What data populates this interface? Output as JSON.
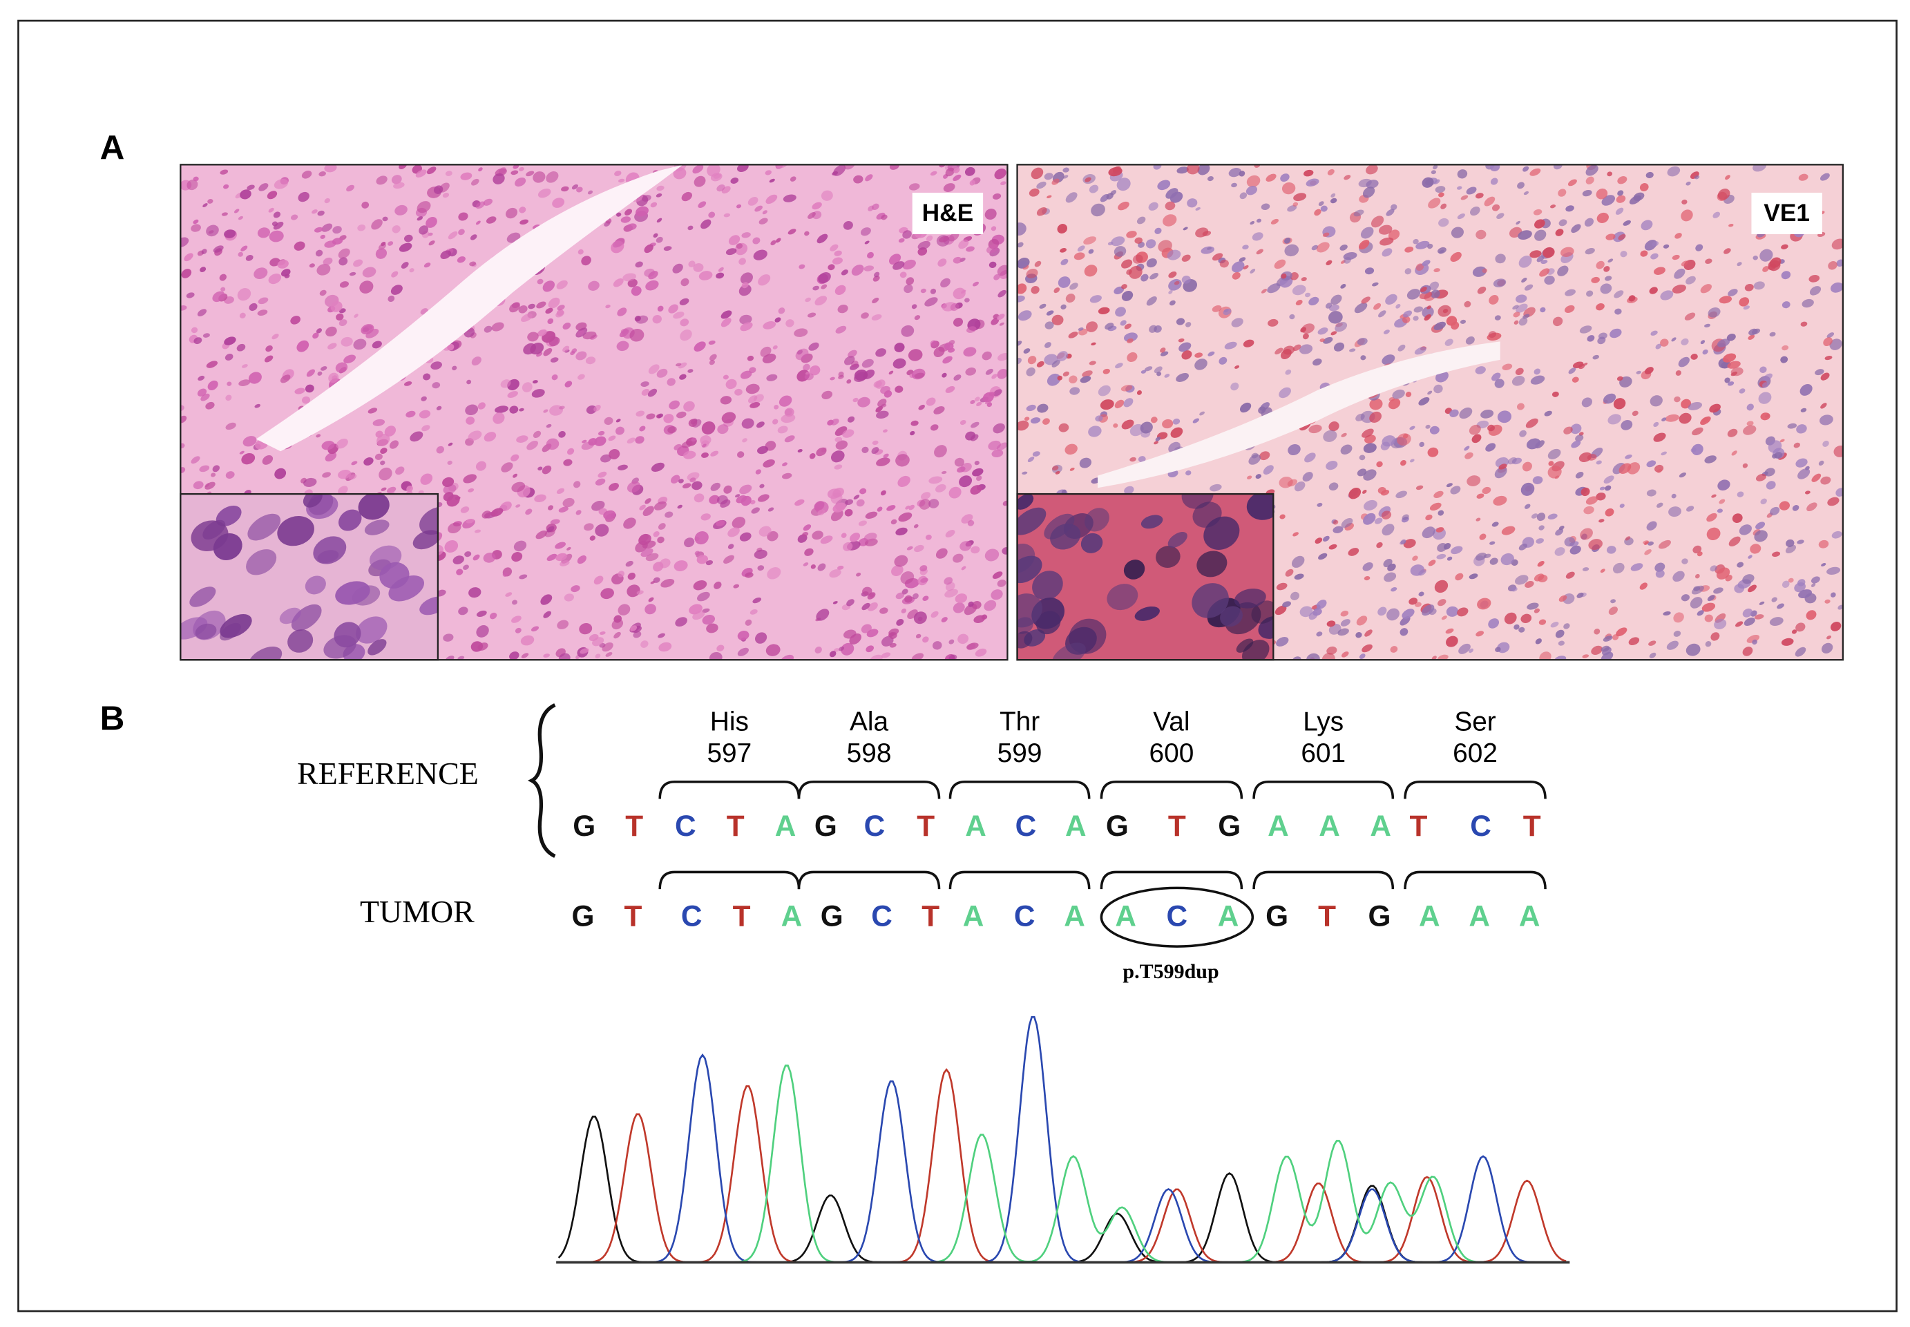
{
  "panel_a": {
    "label": "A",
    "images": [
      {
        "label": "H&E"
      },
      {
        "label": "VE1"
      }
    ]
  },
  "panel_b": {
    "label": "B",
    "reference": {
      "label": "REFERENCE",
      "codons": [
        {
          "amino_acid": "His",
          "position": 597
        },
        {
          "amino_acid": "Ala",
          "position": 598
        },
        {
          "amino_acid": "Thr",
          "position": 599
        },
        {
          "amino_acid": "Val",
          "position": 600
        },
        {
          "amino_acid": "Lys",
          "position": 601
        },
        {
          "amino_acid": "Ser",
          "position": 602
        }
      ],
      "bases": [
        "G",
        "T",
        "C",
        "T",
        "A",
        "G",
        "C",
        "T",
        "A",
        "C",
        "A",
        "G",
        "T",
        "G",
        "A",
        "A",
        "A",
        "T",
        "C",
        "T"
      ]
    },
    "tumor": {
      "label": "TUMOR",
      "bases": [
        "G",
        "T",
        "C",
        "T",
        "A",
        "G",
        "C",
        "T",
        "A",
        "C",
        "A",
        "A",
        "C",
        "A",
        "G",
        "T",
        "G",
        "A",
        "A",
        "A"
      ],
      "annotation": "p.T599dup"
    }
  }
}
